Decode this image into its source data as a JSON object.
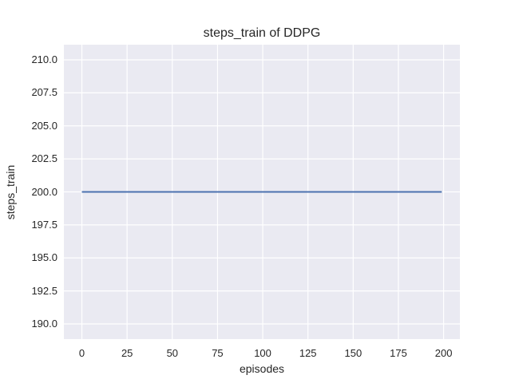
{
  "chart_data": {
    "type": "line",
    "title": "steps_train of DDPG",
    "xlabel": "episodes",
    "ylabel": "steps_train",
    "xlim": [
      -9.95,
      209.0
    ],
    "ylim": [
      188.85,
      211.15
    ],
    "x_tick_labels": [
      "0",
      "25",
      "50",
      "75",
      "100",
      "125",
      "150",
      "175",
      "200"
    ],
    "y_tick_labels": [
      "190.0",
      "192.5",
      "195.0",
      "197.5",
      "200.0",
      "202.5",
      "205.0",
      "207.5",
      "210.0"
    ],
    "grid": true,
    "legend": "none",
    "series": [
      {
        "name": "steps_train",
        "color": "#4c72b0",
        "x": [
          0,
          199
        ],
        "y": [
          200,
          200
        ]
      }
    ],
    "colors": {
      "axes_background": "#eaeaf2",
      "gridline": "#ffffff",
      "text": "#262626",
      "figure_background": "#ffffff"
    }
  }
}
